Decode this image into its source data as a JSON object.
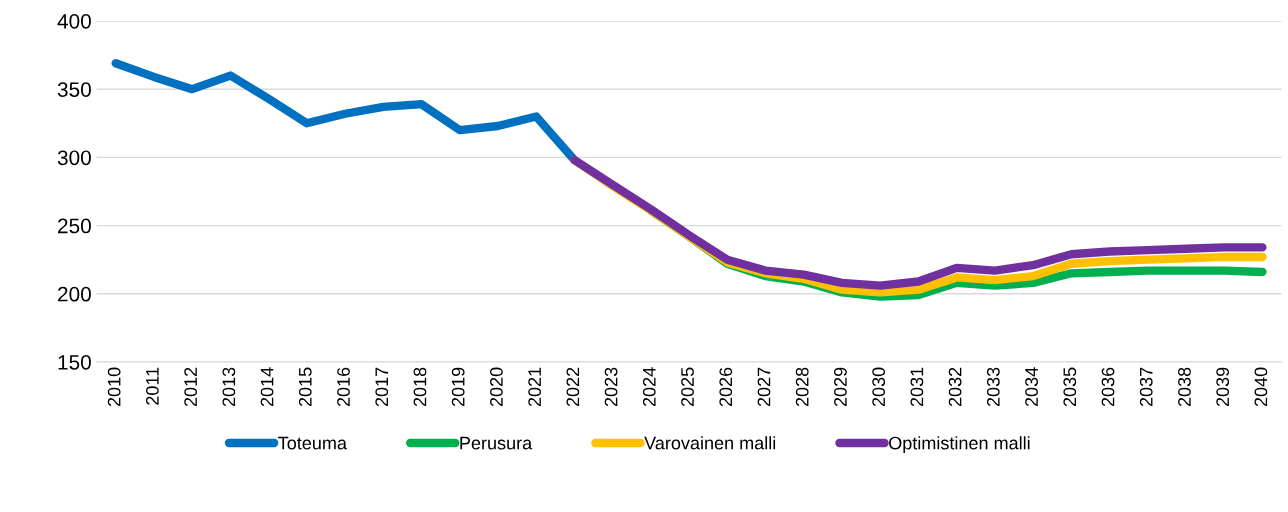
{
  "chart_data": {
    "type": "line",
    "categories": [
      "2010",
      "2011",
      "2012",
      "2013",
      "2014",
      "2015",
      "2016",
      "2017",
      "2018",
      "2019",
      "2020",
      "2021",
      "2022",
      "2023",
      "2024",
      "2025",
      "2026",
      "2027",
      "2028",
      "2029",
      "2030",
      "2031",
      "2032",
      "2033",
      "2034",
      "2035",
      "2036",
      "2037",
      "2038",
      "2039",
      "2040"
    ],
    "series": [
      {
        "name": "Toteuma",
        "color": "#0070c0",
        "values": [
          369,
          359,
          350,
          360,
          343,
          325,
          332,
          337,
          339,
          320,
          323,
          330,
          298,
          null,
          null,
          null,
          null,
          null,
          null,
          null,
          null,
          null,
          null,
          null,
          null,
          null,
          null,
          null,
          null,
          null,
          null
        ]
      },
      {
        "name": "Perusura",
        "color": "#00b050",
        "values": [
          null,
          null,
          null,
          null,
          null,
          null,
          null,
          null,
          null,
          null,
          null,
          null,
          null,
          null,
          261,
          242,
          222,
          213,
          209,
          201,
          198,
          199,
          208,
          206,
          208,
          215,
          216,
          217,
          217,
          217,
          216
        ]
      },
      {
        "name": "Varovainen malli",
        "color": "#ffc000",
        "values": [
          null,
          null,
          null,
          null,
          null,
          null,
          null,
          null,
          null,
          null,
          null,
          null,
          298,
          279,
          261,
          242,
          223,
          215,
          211,
          203,
          201,
          203,
          212,
          210,
          213,
          222,
          224,
          225,
          226,
          227,
          227
        ]
      },
      {
        "name": "Optimistinen malli",
        "color": "#7030a0",
        "values": [
          null,
          null,
          null,
          null,
          null,
          null,
          null,
          null,
          null,
          null,
          null,
          null,
          298,
          280,
          262,
          243,
          225,
          217,
          214,
          208,
          206,
          209,
          219,
          217,
          221,
          229,
          231,
          232,
          233,
          234,
          234
        ]
      }
    ],
    "ylim": [
      150,
      400
    ],
    "yticks": [
      150,
      200,
      250,
      300,
      350,
      400
    ],
    "grid": "y",
    "legend": "bottom",
    "marker": "none",
    "line_style": "solid"
  }
}
